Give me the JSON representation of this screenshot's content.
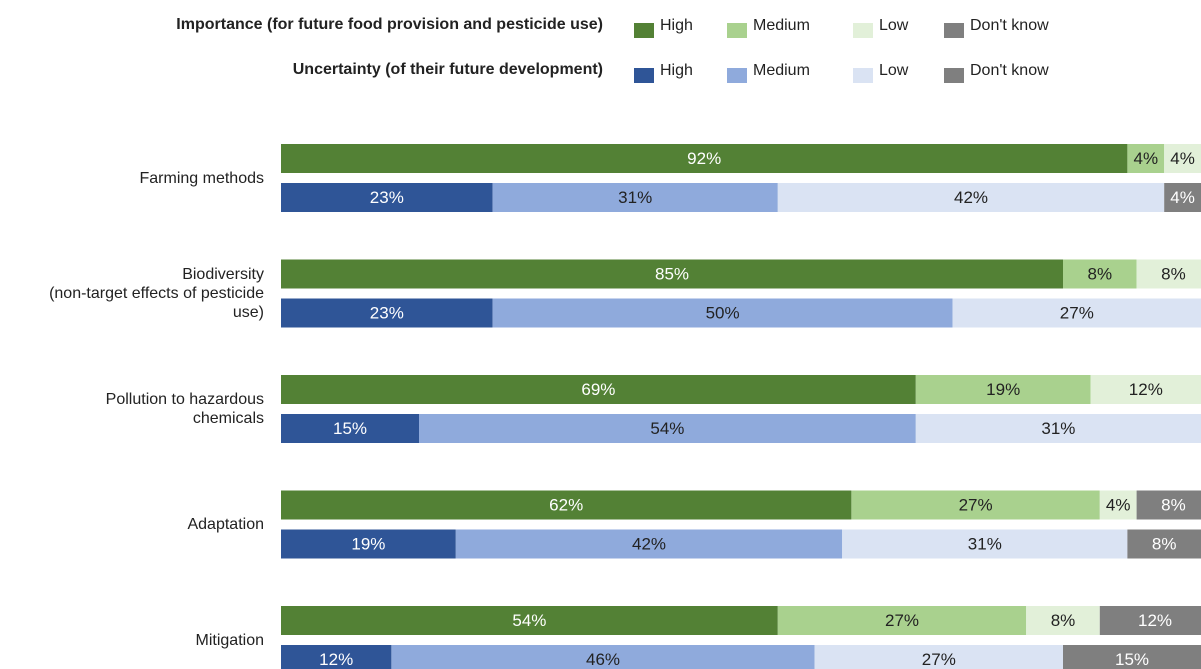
{
  "legend": {
    "rows": [
      {
        "title": "Importance (for future food provision and pesticide use)",
        "items": [
          {
            "label": "High",
            "color": "#538135"
          },
          {
            "label": "Medium",
            "color": "#a9d18e"
          },
          {
            "label": "Low",
            "color": "#e2f0d9"
          },
          {
            "label": "Don't know",
            "color": "#7f7f7f"
          }
        ]
      },
      {
        "title": "Uncertainty (of their future development)",
        "items": [
          {
            "label": "High",
            "color": "#2f5597"
          },
          {
            "label": "Medium",
            "color": "#8faadc"
          },
          {
            "label": "Low",
            "color": "#dae3f3"
          },
          {
            "label": "Don't know",
            "color": "#7f7f7f"
          }
        ]
      }
    ]
  },
  "chart_data": {
    "type": "bar",
    "orientation": "horizontal",
    "stacked": true,
    "xlim": [
      0,
      100
    ],
    "unit": "%",
    "grid": false,
    "legend_position": "top",
    "stack_parts": [
      "High",
      "Medium",
      "Low",
      "Don't know"
    ],
    "categories": [
      "Farming methods",
      "Biodiversity\n(non-target effects of pesticide use)",
      "Pollution to hazardous chemicals",
      "Adaptation",
      "Mitigation"
    ],
    "category_lines": [
      [
        "Farming methods"
      ],
      [
        "Biodiversity",
        "(non-target effects of pesticide",
        "use)"
      ],
      [
        "Pollution to hazardous",
        "chemicals"
      ],
      [
        "Adaptation"
      ],
      [
        "Mitigation"
      ]
    ],
    "series": [
      {
        "name": "Importance (for future food provision and pesticide use)",
        "colors": [
          "#538135",
          "#a9d18e",
          "#e2f0d9",
          "#7f7f7f"
        ],
        "label_colors": [
          "#ffffff",
          "#222222",
          "#222222",
          "#ffffff"
        ],
        "values": [
          [
            92,
            4,
            4,
            0
          ],
          [
            85,
            8,
            8,
            0
          ],
          [
            69,
            19,
            12,
            0
          ],
          [
            62,
            27,
            4,
            8
          ],
          [
            54,
            27,
            8,
            12
          ]
        ],
        "labels": [
          [
            "92%",
            "4%",
            "4%",
            ""
          ],
          [
            "85%",
            "8%",
            "8%",
            ""
          ],
          [
            "69%",
            "19%",
            "12%",
            ""
          ],
          [
            "62%",
            "27%",
            "4%",
            "8%"
          ],
          [
            "54%",
            "27%",
            "8%",
            "12%"
          ]
        ]
      },
      {
        "name": "Uncertainty (of their future development)",
        "colors": [
          "#2f5597",
          "#8faadc",
          "#dae3f3",
          "#7f7f7f"
        ],
        "label_colors": [
          "#ffffff",
          "#222222",
          "#222222",
          "#ffffff"
        ],
        "values": [
          [
            23,
            31,
            42,
            4
          ],
          [
            23,
            50,
            27,
            0
          ],
          [
            15,
            54,
            31,
            0
          ],
          [
            19,
            42,
            31,
            8
          ],
          [
            12,
            46,
            27,
            15
          ]
        ],
        "labels": [
          [
            "23%",
            "31%",
            "42%",
            "4%"
          ],
          [
            "23%",
            "50%",
            "27%",
            ""
          ],
          [
            "15%",
            "54%",
            "31%",
            ""
          ],
          [
            "19%",
            "42%",
            "31%",
            "8%"
          ],
          [
            "12%",
            "46%",
            "27%",
            "15%"
          ]
        ]
      }
    ]
  }
}
